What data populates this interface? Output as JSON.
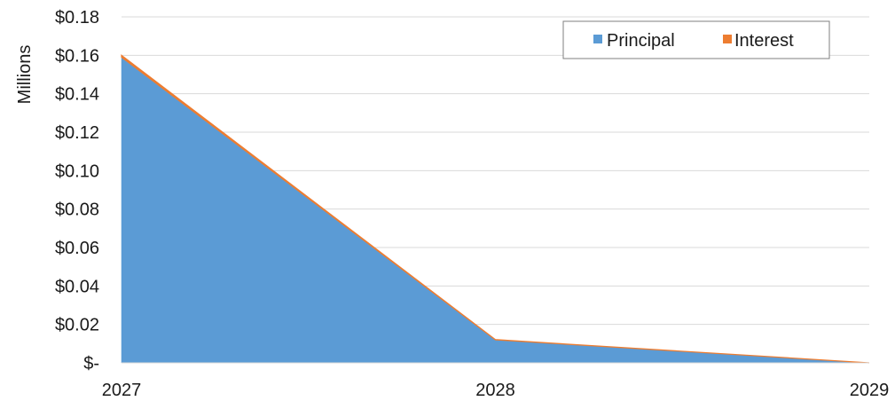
{
  "chart_data": {
    "type": "area",
    "stacked": true,
    "title": "",
    "xlabel": "",
    "ylabel": "Millions",
    "x": [
      "2027",
      "2028",
      "2029"
    ],
    "series": [
      {
        "name": "Principal",
        "values": [
          0.159,
          0.012,
          0.0
        ],
        "color": "#5B9BD5"
      },
      {
        "name": "Interest",
        "values": [
          0.001,
          0.0001,
          0.0
        ],
        "color": "#ED7D31"
      }
    ],
    "ylim": [
      0,
      0.18
    ],
    "y_ticks": [
      0,
      0.02,
      0.04,
      0.06,
      0.08,
      0.1,
      0.12,
      0.14,
      0.16,
      0.18
    ],
    "y_tick_labels": [
      "$-",
      "$0.02",
      "$0.04",
      "$0.06",
      "$0.08",
      "$0.10",
      "$0.12",
      "$0.14",
      "$0.16",
      "$0.18"
    ],
    "grid": true,
    "legend_position": "top-right"
  }
}
